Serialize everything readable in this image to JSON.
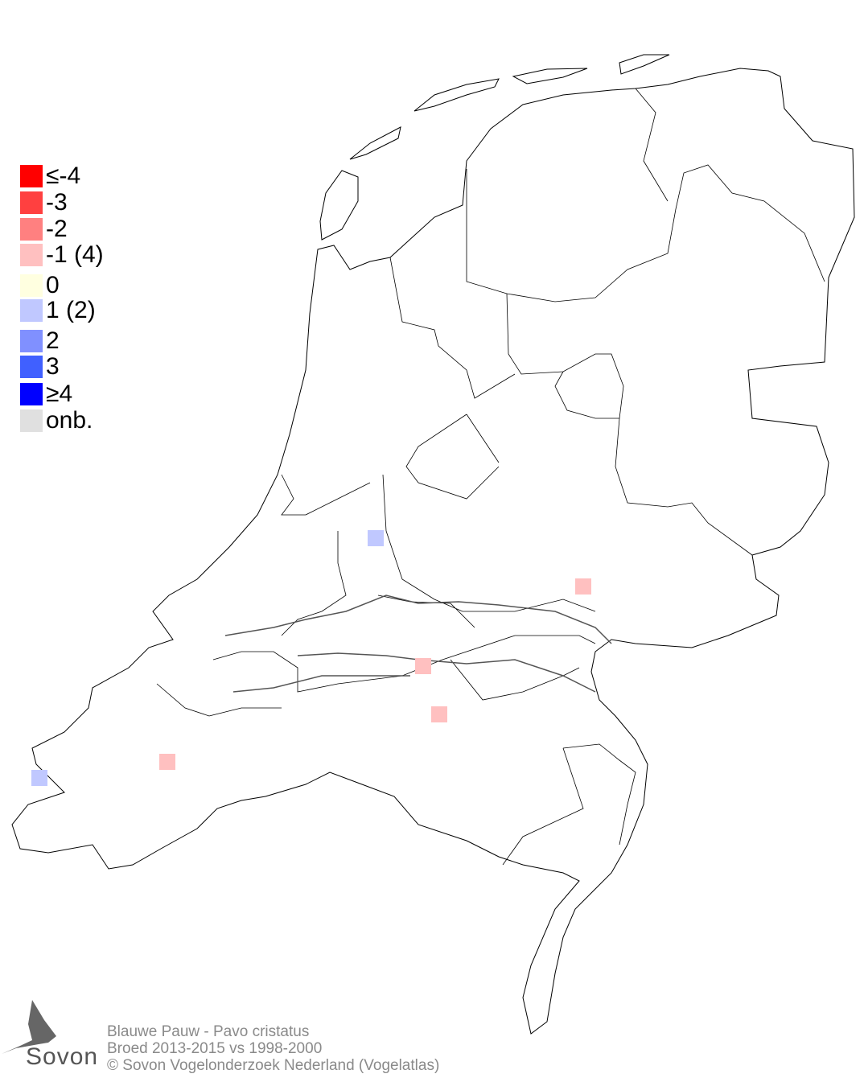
{
  "legend": {
    "items": [
      {
        "label": "≤-4",
        "color": "#ff0000"
      },
      {
        "label": "-3",
        "color": "#ff4040"
      },
      {
        "label": "-2",
        "color": "#ff8080"
      },
      {
        "label": "-1 (4)",
        "color": "#ffc0c0"
      },
      {
        "label": " 0",
        "color": "#ffffe0"
      },
      {
        "label": " 1 (2)",
        "color": "#c0c8ff"
      },
      {
        "label": " 2",
        "color": "#8090ff"
      },
      {
        "label": " 3",
        "color": "#4060ff"
      },
      {
        "label": "≥4",
        "color": "#0000ff"
      },
      {
        "label": "onb.",
        "color": "#e0e0e0"
      }
    ]
  },
  "map": {
    "region": "Netherlands",
    "cells": [
      {
        "class": "1",
        "color": "#c0c8ff",
        "location": "Utrecht/Zuid-Holland border"
      },
      {
        "class": "1",
        "color": "#c0c8ff",
        "location": "Walcheren, Zeeland"
      },
      {
        "class": "-1",
        "color": "#ffc0c0",
        "location": "Gelderland (Achterhoek west)"
      },
      {
        "class": "-1",
        "color": "#ffc0c0",
        "location": "Rivierenland / Maas"
      },
      {
        "class": "-1",
        "color": "#ffc0c0",
        "location": "Noord-Brabant"
      },
      {
        "class": "-1",
        "color": "#ffc0c0",
        "location": "Zeeland / West-Brabant"
      }
    ]
  },
  "footer": {
    "line1": "Blauwe Pauw - Pavo cristatus",
    "line2": "Broed 2013-2015 vs 1998-2000",
    "line3": "© Sovon Vogelonderzoek Nederland (Vogelatlas)"
  },
  "logo": {
    "text": "Sovon"
  }
}
